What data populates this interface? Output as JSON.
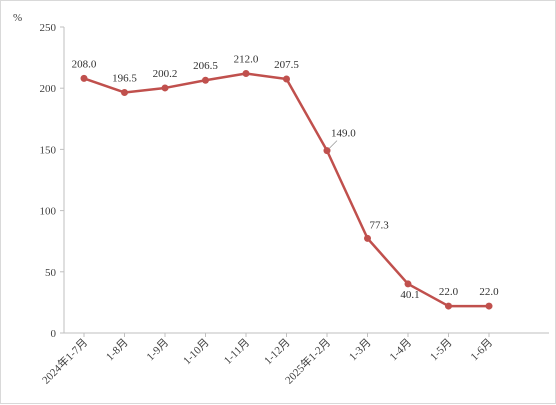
{
  "chart_data": {
    "type": "line",
    "unit_label": "%",
    "ylim": [
      0,
      250
    ],
    "yticks": [
      0,
      50,
      100,
      150,
      200,
      250
    ],
    "grid": false,
    "categories": [
      "2024年1-7月",
      "1-8月",
      "1-9月",
      "1-10月",
      "1-11月",
      "1-12月",
      "2025年1-2月",
      "1-3月",
      "1-4月",
      "1-5月",
      "1-6月"
    ],
    "values": [
      208.0,
      196.5,
      200.2,
      206.5,
      212.0,
      207.5,
      149.0,
      77.3,
      40.1,
      22.0,
      22.0
    ],
    "value_labels": [
      "208.0",
      "196.5",
      "200.2",
      "206.5",
      "212.0",
      "207.5",
      "149.0",
      "77.3",
      "40.1",
      "22.0",
      "22.0"
    ],
    "series_color": "#c0504d"
  }
}
